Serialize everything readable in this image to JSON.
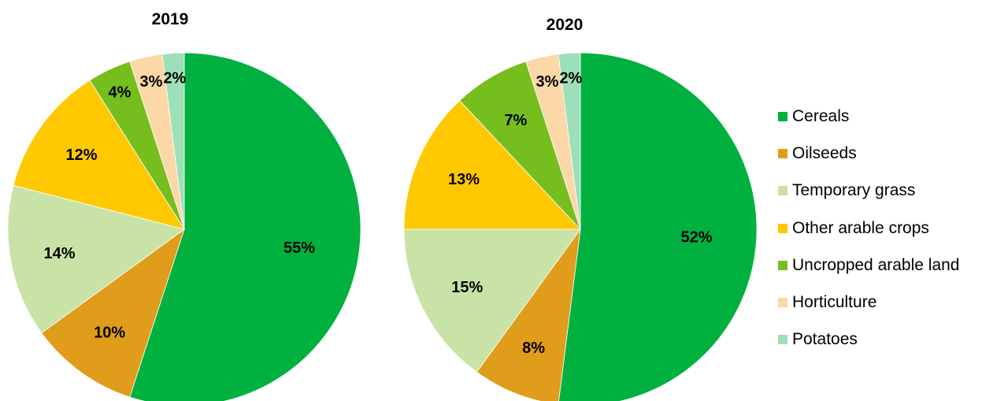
{
  "chart_data": [
    {
      "type": "pie",
      "title": "2019",
      "categories": [
        "Cereals",
        "Oilseeds",
        "Temporary grass",
        "Other arable crops",
        "Uncropped arable land",
        "Horticulture",
        "Potatoes"
      ],
      "values": [
        55,
        10,
        14,
        12,
        4,
        3,
        2
      ],
      "labels": [
        "55%",
        "10%",
        "14%",
        "12%",
        "4%",
        "3%",
        "2%"
      ]
    },
    {
      "type": "pie",
      "title": "2020",
      "categories": [
        "Cereals",
        "Oilseeds",
        "Temporary grass",
        "Other arable crops",
        "Uncropped arable land",
        "Horticulture",
        "Potatoes"
      ],
      "values": [
        52,
        8,
        15,
        13,
        7,
        3,
        2
      ],
      "labels": [
        "52%",
        "8%",
        "15%",
        "13%",
        "7%",
        "3%",
        "2%"
      ]
    }
  ],
  "legend": {
    "placement": "right",
    "items": [
      {
        "label": "Cereals",
        "color": "#00b140"
      },
      {
        "label": "Oilseeds",
        "color": "#e09c1b"
      },
      {
        "label": "Temporary grass",
        "color": "#c8e3a5"
      },
      {
        "label": "Other arable crops",
        "color": "#ffc800"
      },
      {
        "label": "Uncropped arable land",
        "color": "#76be1e"
      },
      {
        "label": "Horticulture",
        "color": "#fcd7a7"
      },
      {
        "label": "Potatoes",
        "color": "#9ddfb8"
      }
    ]
  }
}
